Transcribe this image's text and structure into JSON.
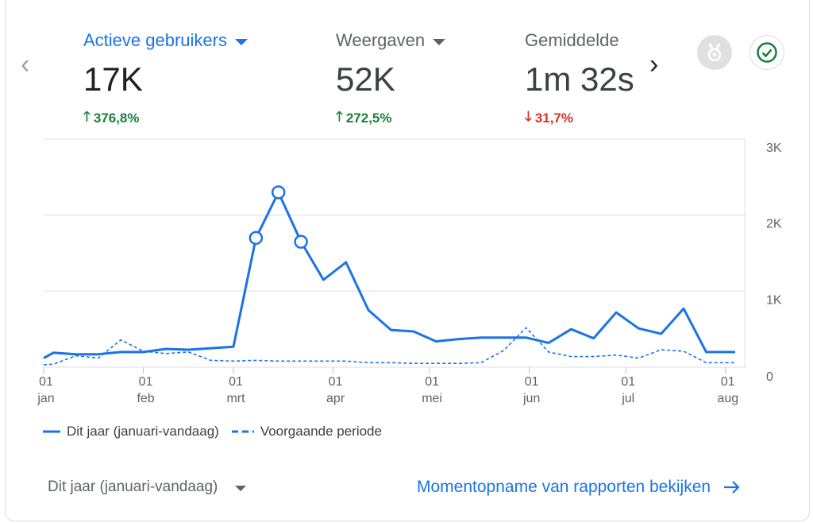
{
  "metrics": [
    {
      "label": "Actieve gebruikers",
      "value": "17K",
      "change": "376,8%",
      "direction": "up"
    },
    {
      "label": "Weergaven",
      "value": "52K",
      "change": "272,5%",
      "direction": "up"
    },
    {
      "label": "Gemiddelde",
      "value": "1m 32s",
      "change": "31,7%",
      "direction": "down"
    }
  ],
  "legend": {
    "current": "Dit jaar (januari-vandaag)",
    "previous": "Voorgaande periode"
  },
  "period_select": {
    "label": "Dit jaar (januari-vandaag)"
  },
  "report_link": {
    "label": "Momentopname van rapporten bekijken"
  },
  "colors": {
    "accent": "#1a73e8",
    "up": "#188038",
    "down": "#d93025"
  },
  "chart_data": {
    "type": "line",
    "y_ticks": [
      "0",
      "1K",
      "2K",
      "3K"
    ],
    "ylim": [
      0,
      3000
    ],
    "x_ticks": [
      {
        "day": "01",
        "month": "jan"
      },
      {
        "day": "01",
        "month": "feb"
      },
      {
        "day": "01",
        "month": "mrt"
      },
      {
        "day": "01",
        "month": "apr"
      },
      {
        "day": "01",
        "month": "mei"
      },
      {
        "day": "01",
        "month": "jun"
      },
      {
        "day": "01",
        "month": "jul"
      },
      {
        "day": "01",
        "month": "aug"
      }
    ],
    "grid": true,
    "series": [
      {
        "name": "Dit jaar (januari-vandaag)",
        "style": "solid",
        "x": [
          "2023-01-01",
          "2023-01-04",
          "2023-01-11",
          "2023-01-18",
          "2023-01-25",
          "2023-02-01",
          "2023-02-08",
          "2023-02-15",
          "2023-02-22",
          "2023-03-01",
          "2023-03-08",
          "2023-03-15",
          "2023-03-22",
          "2023-03-29",
          "2023-04-05",
          "2023-04-12",
          "2023-04-19",
          "2023-04-26",
          "2023-05-03",
          "2023-05-10",
          "2023-05-17",
          "2023-05-24",
          "2023-05-31",
          "2023-06-07",
          "2023-06-14",
          "2023-06-21",
          "2023-06-28",
          "2023-07-05",
          "2023-07-12",
          "2023-07-19",
          "2023-07-26",
          "2023-08-02",
          "2023-08-04"
        ],
        "values": [
          120,
          190,
          170,
          170,
          200,
          200,
          240,
          230,
          250,
          270,
          1700,
          2300,
          1650,
          1150,
          1380,
          750,
          490,
          470,
          340,
          370,
          390,
          390,
          390,
          320,
          500,
          380,
          720,
          510,
          440,
          770,
          200,
          200,
          200
        ],
        "markers": [
          10,
          11,
          12
        ]
      },
      {
        "name": "Voorgaande periode",
        "style": "dashed",
        "x": [
          "2023-01-01",
          "2023-01-04",
          "2023-01-11",
          "2023-01-18",
          "2023-01-25",
          "2023-02-01",
          "2023-02-08",
          "2023-02-15",
          "2023-02-22",
          "2023-03-01",
          "2023-03-08",
          "2023-03-15",
          "2023-03-22",
          "2023-03-29",
          "2023-04-05",
          "2023-04-12",
          "2023-04-19",
          "2023-04-26",
          "2023-05-03",
          "2023-05-10",
          "2023-05-17",
          "2023-05-24",
          "2023-05-31",
          "2023-06-07",
          "2023-06-14",
          "2023-06-21",
          "2023-06-28",
          "2023-07-05",
          "2023-07-12",
          "2023-07-19",
          "2023-07-26",
          "2023-08-02",
          "2023-08-04"
        ],
        "values": [
          30,
          40,
          150,
          120,
          360,
          210,
          180,
          200,
          90,
          80,
          90,
          80,
          80,
          80,
          80,
          60,
          60,
          50,
          50,
          50,
          60,
          220,
          520,
          200,
          140,
          140,
          160,
          120,
          230,
          210,
          60,
          60,
          60
        ]
      }
    ]
  }
}
